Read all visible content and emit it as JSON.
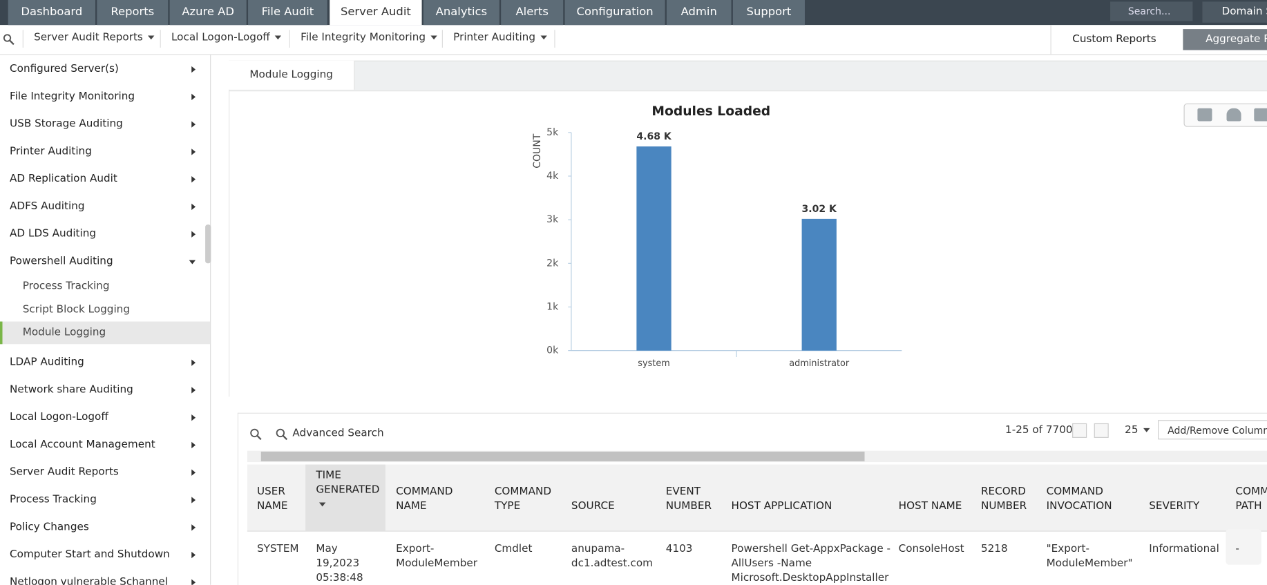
{
  "nav_tabs": [
    "Dashboard",
    "Reports",
    "Azure AD",
    "File Audit",
    "Server Audit",
    "Analytics",
    "Alerts",
    "Configuration",
    "Admin",
    "Support"
  ],
  "active_tab": "Server Audit",
  "search_placeholder": "Search...",
  "domain_settings": "Domain Settings",
  "sub_nav": [
    "Server Audit Reports",
    "Local Logon-Logoff",
    "File Integrity Monitoring",
    "Printer Auditing"
  ],
  "custom_reports": "Custom Reports",
  "aggregate_reports": "Aggregate Reports",
  "sidebar": [
    {
      "label": "Configured Server(s)"
    },
    {
      "label": "File Integrity Monitoring"
    },
    {
      "label": "USB Storage Auditing"
    },
    {
      "label": "Printer Auditing"
    },
    {
      "label": "AD Replication Audit"
    },
    {
      "label": "ADFS Auditing"
    },
    {
      "label": "AD LDS Auditing"
    },
    {
      "label": "Powershell Auditing",
      "children": [
        "Process Tracking",
        "Script Block Logging",
        "Module Logging"
      ]
    },
    {
      "label": "LDAP Auditing"
    },
    {
      "label": "Network share Auditing"
    },
    {
      "label": "Local Logon-Logoff"
    },
    {
      "label": "Local Account Management"
    },
    {
      "label": "Server Audit Reports"
    },
    {
      "label": "Process Tracking"
    },
    {
      "label": "Policy Changes"
    },
    {
      "label": "Computer Start and Shutdown"
    },
    {
      "label": "Netlogon vulnerable Schannel"
    }
  ],
  "selected_item": "Module Logging",
  "report_tab": "Module Logging",
  "chart_data": {
    "type": "bar",
    "title": "Modules Loaded",
    "y_label": "COUNT",
    "categories": [
      "system",
      "administrator"
    ],
    "values": [
      4680,
      3020
    ],
    "value_labels": [
      "4.68 K",
      "3.02 K"
    ],
    "color": "#4a86c0",
    "ylim": [
      0,
      5000
    ],
    "yticks": [
      {
        "value": 0,
        "label": "0k"
      },
      {
        "value": 1000,
        "label": "1k"
      },
      {
        "value": 2000,
        "label": "2k"
      },
      {
        "value": 3000,
        "label": "3k"
      },
      {
        "value": 4000,
        "label": "4k"
      },
      {
        "value": 5000,
        "label": "5k"
      }
    ],
    "grid": false
  },
  "table": {
    "advanced_search": "Advanced Search",
    "pagination": "1-25 of 7700",
    "page_size": "25",
    "add_remove_columns": "Add/Remove Columns",
    "columns": [
      [
        "USER",
        "NAME"
      ],
      [
        "TIME",
        "GENERATED"
      ],
      [
        "COMMAND",
        "NAME"
      ],
      [
        "COMMAND",
        "TYPE"
      ],
      [
        "SOURCE"
      ],
      [
        "EVENT",
        "NUMBER"
      ],
      [
        "HOST APPLICATION"
      ],
      [
        "HOST NAME"
      ],
      [
        "RECORD",
        "NUMBER"
      ],
      [
        "COMMAND",
        "INVOCATION"
      ],
      [
        "SEVERITY"
      ],
      [
        "COMMAND",
        "PATH"
      ]
    ],
    "rows": [
      [
        [
          "SYSTEM"
        ],
        [
          "May",
          "19,2023",
          "05:38:48"
        ],
        [
          "Export-",
          "ModuleMember"
        ],
        [
          "Cmdlet"
        ],
        [
          "anupama-",
          "dc1.adtest.com"
        ],
        [
          "4103"
        ],
        [
          "Powershell Get-AppxPackage -",
          "AllUsers -Name",
          "Microsoft.DesktopAppInstaller"
        ],
        [
          "ConsoleHost"
        ],
        [
          "5218"
        ],
        [
          "\"Export-",
          "ModuleMember\""
        ],
        [
          "Informational"
        ],
        [
          "-"
        ]
      ]
    ]
  }
}
